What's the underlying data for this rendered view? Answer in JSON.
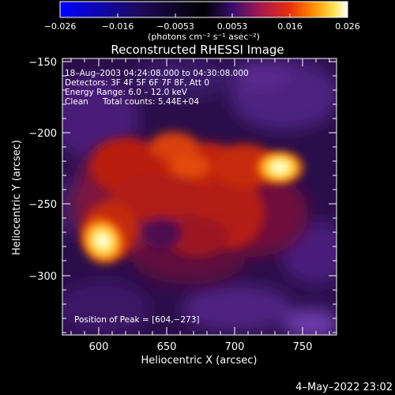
{
  "colorbar": {
    "ticks": [
      "−0.026",
      "−0.016",
      "−0.0053",
      "0.0053",
      "0.016",
      "0.026"
    ],
    "unit_label": "(photons cm⁻² s⁻¹ asec⁻²)",
    "stops": [
      "#0000ff",
      "#1e0a5a",
      "#000000",
      "#3a0d6e",
      "#a8184e",
      "#e8300a",
      "#ff8c00",
      "#ffe14a",
      "#ffffff"
    ]
  },
  "title": "Reconstructed RHESSI Image",
  "info": {
    "line1": "18–Aug–2003 04:24:08.000 to 04:30:08.000",
    "line2": "Detectors: 3F 4F 5F 6F 7F 8F, Att 0",
    "line3": "Energy Range: 6.0 – 12.0 keV",
    "line4_left": "Clean",
    "line4_right": "Total counts: 5.44E+04"
  },
  "peak_text": "Position of Peak = [604,−273]",
  "axes": {
    "xlabel": "Heliocentric X (arcsec)",
    "ylabel": "Heliocentric Y (arcsec)",
    "x_ticks": [
      "600",
      "650",
      "700",
      "750"
    ],
    "y_ticks": [
      "−150",
      "−200",
      "−250",
      "−300"
    ]
  },
  "timestamp": "4–May–2022 23:02"
}
